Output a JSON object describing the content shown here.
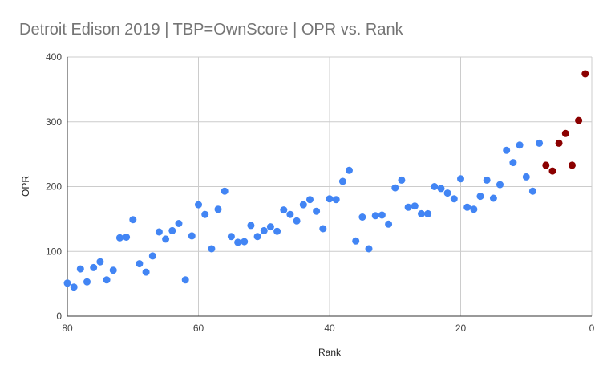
{
  "chart_data": {
    "type": "scatter",
    "title": "Detroit Edison 2019 | TBP=OwnScore | OPR vs. Rank",
    "xlabel": "Rank",
    "ylabel": "OPR",
    "xlim": [
      80,
      0
    ],
    "ylim": [
      0,
      400
    ],
    "x_reversed": true,
    "x_ticks": [
      "80",
      "60",
      "40",
      "20",
      "0"
    ],
    "y_ticks": [
      "0",
      "100",
      "200",
      "300",
      "400"
    ],
    "grid": true,
    "legend": "none",
    "colors": {
      "default": "#4285f4",
      "highlight": "#8b0000"
    },
    "series": [
      {
        "color": "#4285f4",
        "points": [
          [
            80,
            51
          ],
          [
            79,
            45
          ],
          [
            78,
            73
          ],
          [
            77,
            53
          ],
          [
            76,
            75
          ],
          [
            75,
            84
          ],
          [
            74,
            56
          ],
          [
            73,
            71
          ],
          [
            72,
            121
          ],
          [
            71,
            122
          ],
          [
            70,
            149
          ],
          [
            69,
            81
          ],
          [
            68,
            68
          ],
          [
            67,
            93
          ],
          [
            66,
            130
          ],
          [
            65,
            119
          ],
          [
            64,
            132
          ],
          [
            63,
            143
          ],
          [
            62,
            56
          ],
          [
            61,
            124
          ],
          [
            60,
            172
          ],
          [
            59,
            157
          ],
          [
            58,
            104
          ],
          [
            57,
            165
          ],
          [
            56,
            193
          ],
          [
            55,
            123
          ],
          [
            54,
            114
          ],
          [
            53,
            115
          ],
          [
            52,
            140
          ],
          [
            51,
            123
          ],
          [
            50,
            132
          ],
          [
            49,
            138
          ],
          [
            48,
            131
          ],
          [
            47,
            164
          ],
          [
            46,
            157
          ],
          [
            45,
            147
          ],
          [
            44,
            172
          ],
          [
            43,
            180
          ],
          [
            42,
            162
          ],
          [
            41,
            135
          ],
          [
            40,
            181
          ],
          [
            39,
            180
          ],
          [
            38,
            208
          ],
          [
            37,
            225
          ],
          [
            36,
            116
          ],
          [
            35,
            153
          ],
          [
            34,
            104
          ],
          [
            33,
            155
          ],
          [
            32,
            156
          ],
          [
            31,
            142
          ],
          [
            30,
            198
          ],
          [
            29,
            210
          ],
          [
            28,
            168
          ],
          [
            27,
            170
          ],
          [
            26,
            158
          ],
          [
            25,
            158
          ],
          [
            24,
            200
          ],
          [
            23,
            197
          ],
          [
            22,
            190
          ],
          [
            21,
            181
          ],
          [
            20,
            212
          ],
          [
            19,
            168
          ],
          [
            18,
            165
          ],
          [
            17,
            185
          ],
          [
            16,
            210
          ],
          [
            15,
            182
          ],
          [
            14,
            203
          ],
          [
            13,
            256
          ],
          [
            12,
            237
          ],
          [
            11,
            264
          ],
          [
            10,
            215
          ],
          [
            9,
            193
          ],
          [
            8,
            267
          ]
        ]
      },
      {
        "color": "#8b0000",
        "points": [
          [
            7,
            233
          ],
          [
            6,
            224
          ],
          [
            5,
            267
          ],
          [
            4,
            282
          ],
          [
            3,
            233
          ],
          [
            2,
            302
          ],
          [
            1,
            374
          ]
        ]
      }
    ]
  }
}
